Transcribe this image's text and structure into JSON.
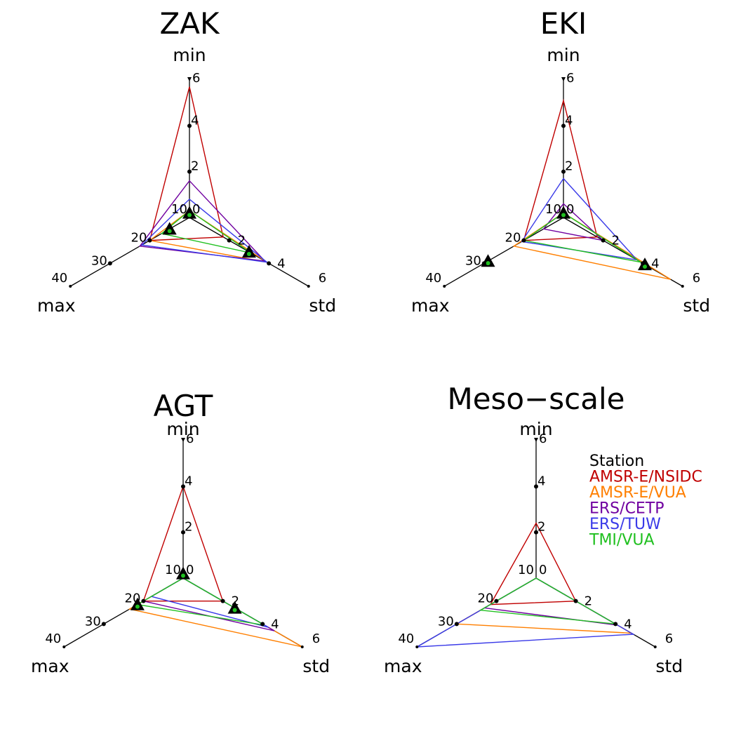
{
  "legend": {
    "items": [
      {
        "name": "Station",
        "color": "#000000"
      },
      {
        "name": "AMSR-E/NSIDC",
        "color": "#c00000"
      },
      {
        "name": "AMSR-E/VUA",
        "color": "#ff7f00"
      },
      {
        "name": "ERS/CETP",
        "color": "#7000a0"
      },
      {
        "name": "ERS/TUW",
        "color": "#3a3ae8"
      },
      {
        "name": "TMI/VUA",
        "color": "#20c020"
      }
    ]
  },
  "axes_labels": {
    "min": "min",
    "std": "std",
    "max": "max"
  },
  "chart_data": [
    {
      "type": "radar",
      "title": "ZAK",
      "axes": {
        "min": {
          "label": "min",
          "range": [
            0,
            6
          ],
          "ticks": [
            "0",
            "2",
            "4",
            "6"
          ]
        },
        "std": {
          "label": "std",
          "range": [
            0,
            6
          ],
          "ticks": [
            "2",
            "4",
            "6"
          ]
        },
        "max": {
          "label": "max",
          "range": [
            10,
            40
          ],
          "ticks": [
            "10",
            "20",
            "30",
            "40"
          ]
        }
      },
      "station": {
        "min": 0.2,
        "std": 3.0,
        "max": 15
      },
      "series": [
        {
          "name": "AMSR-E/NSIDC",
          "min": 5.7,
          "std": 1.7,
          "max": 20
        },
        {
          "name": "AMSR-E/VUA",
          "min": 0.3,
          "std": 3.9,
          "max": 20
        },
        {
          "name": "ERS/CETP",
          "min": 1.6,
          "std": 3.8,
          "max": 22.5
        },
        {
          "name": "ERS/TUW",
          "min": 0.8,
          "std": 3.9,
          "max": 22
        },
        {
          "name": "TMI/VUA",
          "min": 0.3,
          "std": 3.1,
          "max": 17
        }
      ]
    },
    {
      "type": "radar",
      "title": "EKI",
      "axes": {
        "min": {
          "label": "min",
          "range": [
            0,
            6
          ],
          "ticks": [
            "0",
            "2",
            "4",
            "6"
          ]
        },
        "std": {
          "label": "std",
          "range": [
            0,
            6
          ],
          "ticks": [
            "2",
            "4",
            "6"
          ]
        },
        "max": {
          "label": "max",
          "range": [
            10,
            40
          ],
          "ticks": [
            "10",
            "20",
            "30",
            "40"
          ]
        }
      },
      "station": {
        "min": 0.2,
        "std": 4.1,
        "max": 29
      },
      "series": [
        {
          "name": "AMSR-E/NSIDC",
          "min": 5.1,
          "std": 1.7,
          "max": 20
        },
        {
          "name": "AMSR-E/VUA",
          "min": 0.2,
          "std": 5.4,
          "max": 22.5
        },
        {
          "name": "ERS/CETP",
          "min": 0.6,
          "std": 2.0,
          "max": 15
        },
        {
          "name": "ERS/TUW",
          "min": 1.7,
          "std": 3.7,
          "max": 20.5
        },
        {
          "name": "TMI/VUA",
          "min": 0.2,
          "std": 3.9,
          "max": 20
        }
      ]
    },
    {
      "type": "radar",
      "title": "AGT",
      "axes": {
        "min": {
          "label": "min",
          "range": [
            0,
            6
          ],
          "ticks": [
            "0",
            "2",
            "4",
            "6"
          ]
        },
        "std": {
          "label": "std",
          "range": [
            0,
            6
          ],
          "ticks": [
            "2",
            "4",
            "6"
          ]
        },
        "max": {
          "label": "max",
          "range": [
            10,
            40
          ],
          "ticks": [
            "10",
            "20",
            "30",
            "40"
          ]
        }
      },
      "station": {
        "min": 0.2,
        "std": 2.6,
        "max": 21.5
      },
      "series": [
        {
          "name": "AMSR-E/NSIDC",
          "min": 4.0,
          "std": 2.0,
          "max": 20
        },
        {
          "name": "AMSR-E/VUA",
          "min": 0.0,
          "std": 6.0,
          "max": 23.5
        },
        {
          "name": "ERS/CETP",
          "min": 0.0,
          "std": 4.6,
          "max": 20
        },
        {
          "name": "ERS/TUW",
          "min": 0.0,
          "std": 4.3,
          "max": 18
        },
        {
          "name": "TMI/VUA",
          "min": 0.0,
          "std": 4.1,
          "max": 21.5
        }
      ]
    },
    {
      "type": "radar",
      "title": "Meso−scale",
      "axes": {
        "min": {
          "label": "min",
          "range": [
            0,
            6
          ],
          "ticks": [
            "0",
            "2",
            "4",
            "6"
          ]
        },
        "std": {
          "label": "std",
          "range": [
            0,
            6
          ],
          "ticks": [
            "2",
            "4",
            "6"
          ]
        },
        "max": {
          "label": "max",
          "range": [
            10,
            40
          ],
          "ticks": [
            "10",
            "20",
            "30",
            "40"
          ]
        }
      },
      "series": [
        {
          "name": "AMSR-E/NSIDC",
          "min": 2.4,
          "std": 2.0,
          "max": 21.5
        },
        {
          "name": "AMSR-E/VUA",
          "min": 0.0,
          "std": 4.8,
          "max": 30
        },
        {
          "name": "ERS/CETP",
          "min": 0.0,
          "std": 4.1,
          "max": 23
        },
        {
          "name": "ERS/TUW",
          "min": 0.0,
          "std": 4.9,
          "max": 40
        },
        {
          "name": "TMI/VUA",
          "min": 0.0,
          "std": 4.0,
          "max": 24
        }
      ]
    }
  ]
}
